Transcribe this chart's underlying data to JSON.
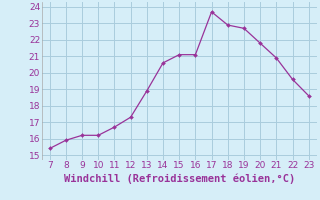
{
  "x": [
    7,
    8,
    9,
    10,
    11,
    12,
    13,
    14,
    15,
    16,
    17,
    18,
    19,
    20,
    21,
    22,
    23
  ],
  "y": [
    15.4,
    15.9,
    16.2,
    16.2,
    16.7,
    17.3,
    18.9,
    20.6,
    21.1,
    21.1,
    23.7,
    22.9,
    22.7,
    21.8,
    20.9,
    19.6,
    18.6
  ],
  "line_color": "#993399",
  "marker_color": "#993399",
  "bg_color": "#d6eef8",
  "grid_color": "#aaccdd",
  "xlabel": "Windchill (Refroidissement éolien,°C)",
  "xlabel_color": "#993399",
  "xlabel_fontsize": 7.5,
  "xlim": [
    6.5,
    23.5
  ],
  "ylim": [
    14.7,
    24.3
  ],
  "xticks": [
    7,
    8,
    9,
    10,
    11,
    12,
    13,
    14,
    15,
    16,
    17,
    18,
    19,
    20,
    21,
    22,
    23
  ],
  "yticks": [
    15,
    16,
    17,
    18,
    19,
    20,
    21,
    22,
    23,
    24
  ],
  "tick_fontsize": 6.5,
  "tick_color": "#993399"
}
